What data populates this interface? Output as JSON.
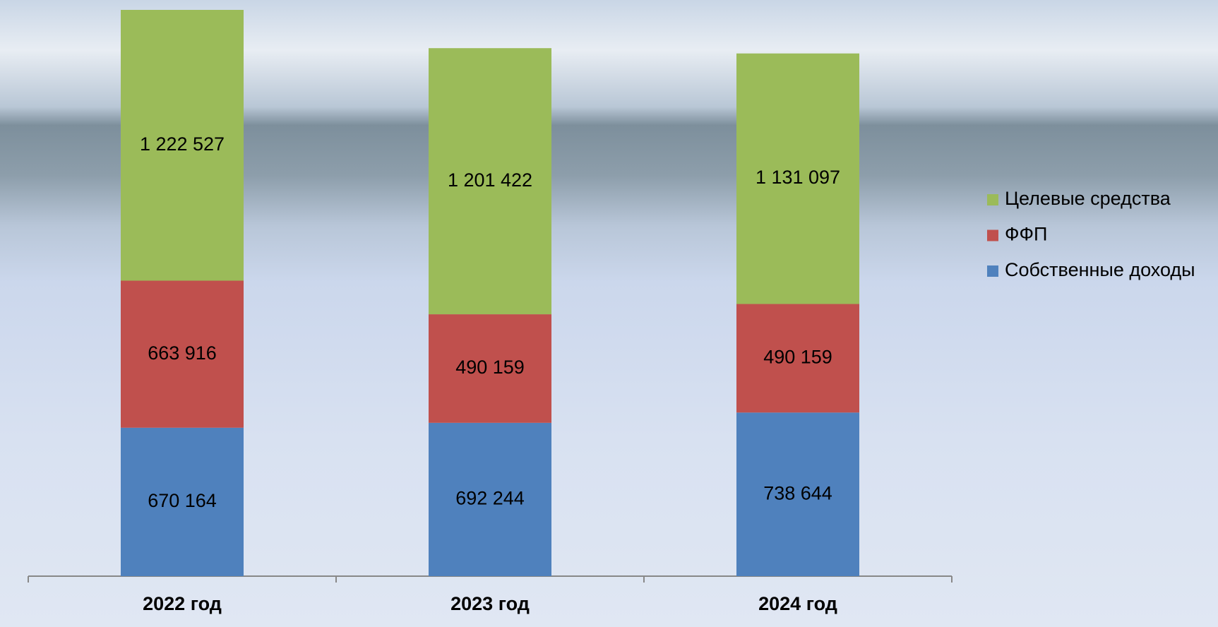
{
  "chart_data": {
    "type": "stacked-bar",
    "categories": [
      "2022 год",
      "2023 год",
      "2024 год"
    ],
    "series": [
      {
        "name": "Собственные доходы",
        "color": "#4f81bd",
        "values": [
          670164,
          692244,
          738644
        ],
        "value_labels": [
          "670 164",
          "692 244",
          "738 644"
        ]
      },
      {
        "name": "ФФП",
        "color": "#c0504d",
        "values": [
          663916,
          490159,
          490159
        ],
        "value_labels": [
          "663 916",
          "490 159",
          "490 159"
        ]
      },
      {
        "name": "Целевые средства",
        "color": "#9bbb59",
        "values": [
          1222527,
          1201422,
          1131097
        ],
        "value_labels": [
          "1 222 527",
          "1 201 422",
          "1 131 097"
        ]
      }
    ],
    "legend": "right"
  }
}
